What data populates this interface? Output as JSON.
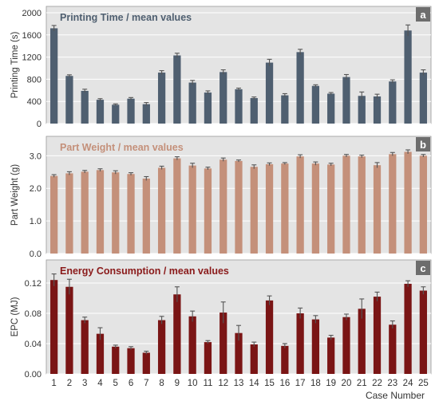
{
  "figure": {
    "xlabel": "Case Number",
    "categories": [
      "1",
      "2",
      "3",
      "4",
      "5",
      "6",
      "7",
      "8",
      "9",
      "10",
      "11",
      "12",
      "13",
      "14",
      "15",
      "16",
      "17",
      "18",
      "19",
      "20",
      "21",
      "22",
      "23",
      "24",
      "25"
    ],
    "colors": {
      "background": "#e4e4e4",
      "grid": "#ffffff",
      "frame": "#9a9a9a",
      "text": "#444444",
      "error": "#555555"
    }
  },
  "chart_data": [
    {
      "type": "bar",
      "panel_label": "a",
      "title": "Printing Time / mean values",
      "ylabel": "Printing Time (s)",
      "ylim": [
        0,
        2000
      ],
      "yticks": [
        "0",
        "400",
        "800",
        "1200",
        "1600",
        "2000"
      ],
      "color": "#4f5f70",
      "title_color": "#4f5f70",
      "grid": true,
      "categories": [
        "1",
        "2",
        "3",
        "4",
        "5",
        "6",
        "7",
        "8",
        "9",
        "10",
        "11",
        "12",
        "13",
        "14",
        "15",
        "16",
        "17",
        "18",
        "19",
        "20",
        "21",
        "22",
        "23",
        "24",
        "25"
      ],
      "values": [
        1720,
        860,
        590,
        430,
        340,
        450,
        350,
        920,
        1230,
        740,
        560,
        930,
        620,
        460,
        1100,
        510,
        1290,
        680,
        540,
        840,
        500,
        490,
        760,
        1680,
        920
      ],
      "errors": [
        50,
        20,
        30,
        20,
        15,
        20,
        30,
        35,
        40,
        40,
        30,
        40,
        20,
        20,
        60,
        30,
        50,
        20,
        20,
        45,
        70,
        40,
        30,
        100,
        50
      ]
    },
    {
      "type": "bar",
      "panel_label": "b",
      "title": "Part Weight / mean values",
      "ylabel": "Part Weight (g)",
      "ylim": [
        0,
        3.4
      ],
      "yticks": [
        "0.0",
        "1.0",
        "2.0",
        "3.0"
      ],
      "color": "#c4907a",
      "title_color": "#c4907a",
      "grid": true,
      "categories": [
        "1",
        "2",
        "3",
        "4",
        "5",
        "6",
        "7",
        "8",
        "9",
        "10",
        "11",
        "12",
        "13",
        "14",
        "15",
        "16",
        "17",
        "18",
        "19",
        "20",
        "21",
        "22",
        "23",
        "24",
        "25"
      ],
      "values": [
        2.38,
        2.46,
        2.51,
        2.56,
        2.49,
        2.44,
        2.3,
        2.63,
        2.92,
        2.7,
        2.61,
        2.88,
        2.84,
        2.66,
        2.74,
        2.76,
        2.98,
        2.76,
        2.73,
        3.0,
        2.98,
        2.71,
        3.05,
        3.12,
        3.0
      ],
      "errors": [
        0.04,
        0.05,
        0.04,
        0.04,
        0.05,
        0.04,
        0.06,
        0.05,
        0.05,
        0.07,
        0.04,
        0.05,
        0.03,
        0.06,
        0.04,
        0.03,
        0.05,
        0.05,
        0.04,
        0.04,
        0.04,
        0.08,
        0.05,
        0.06,
        0.04
      ]
    },
    {
      "type": "bar",
      "panel_label": "c",
      "title": "Energy Consumption / mean values",
      "ylabel": "EPC (MJ)",
      "ylim": [
        0,
        0.14
      ],
      "yticks": [
        "0.00",
        "0.04",
        "0.08",
        "0.12"
      ],
      "color": "#7a1515",
      "title_color": "#8a1a1a",
      "grid": true,
      "categories": [
        "1",
        "2",
        "3",
        "4",
        "5",
        "6",
        "7",
        "8",
        "9",
        "10",
        "11",
        "12",
        "13",
        "14",
        "15",
        "16",
        "17",
        "18",
        "19",
        "20",
        "21",
        "22",
        "23",
        "24",
        "25"
      ],
      "values": [
        0.124,
        0.115,
        0.071,
        0.053,
        0.036,
        0.034,
        0.028,
        0.071,
        0.105,
        0.076,
        0.042,
        0.081,
        0.054,
        0.039,
        0.097,
        0.037,
        0.08,
        0.072,
        0.048,
        0.075,
        0.086,
        0.102,
        0.065,
        0.119,
        0.11
      ],
      "errors": [
        0.008,
        0.01,
        0.004,
        0.008,
        0.002,
        0.002,
        0.002,
        0.005,
        0.01,
        0.007,
        0.002,
        0.014,
        0.01,
        0.003,
        0.006,
        0.003,
        0.007,
        0.005,
        0.003,
        0.004,
        0.013,
        0.006,
        0.005,
        0.004,
        0.005
      ]
    }
  ]
}
